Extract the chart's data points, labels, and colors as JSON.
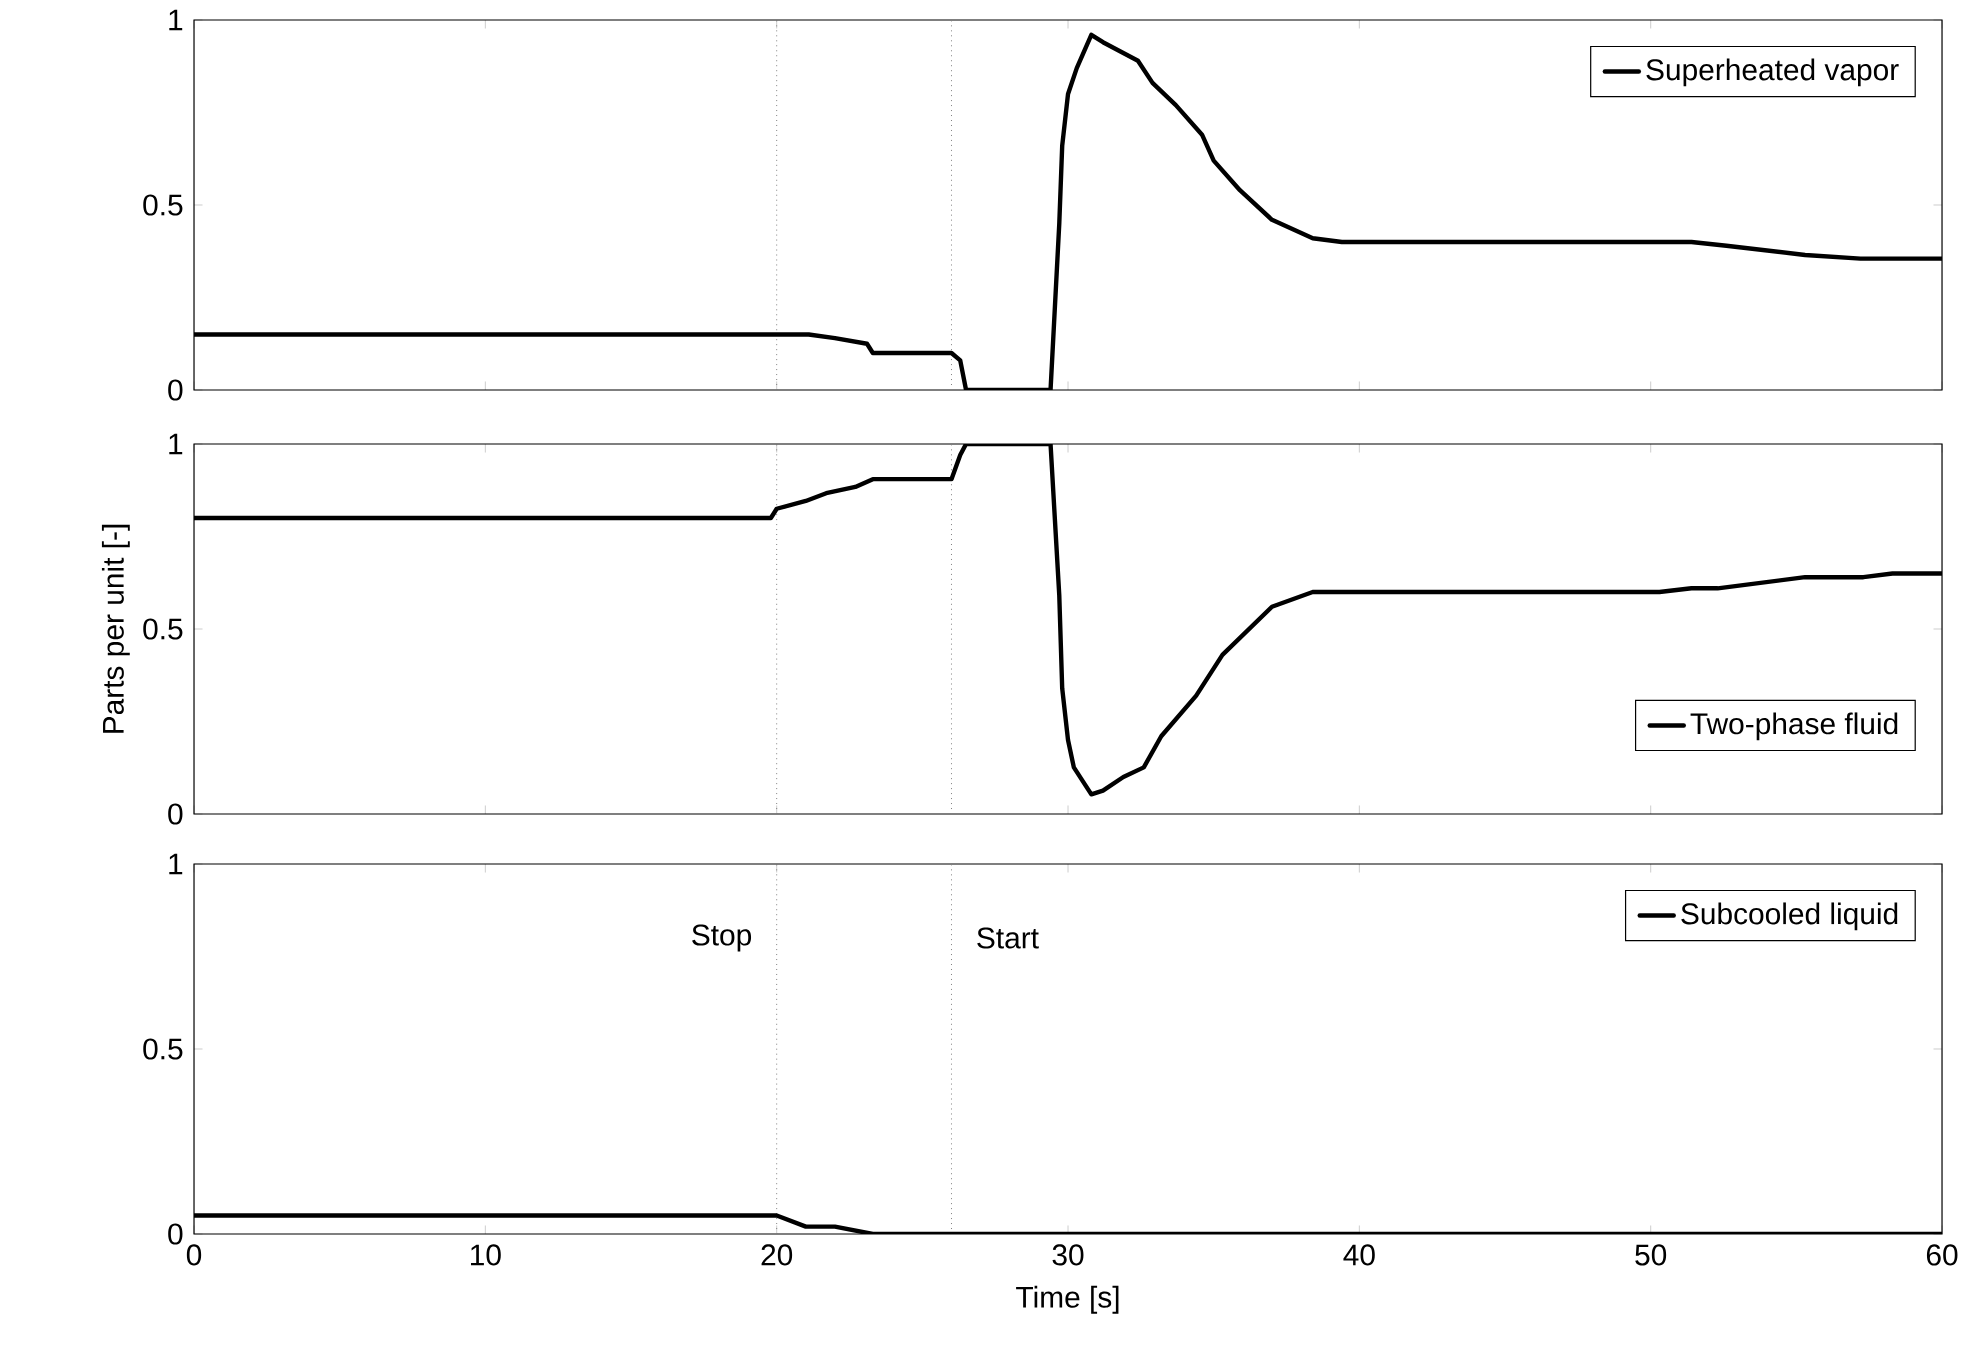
{
  "chart_data": [
    {
      "type": "line",
      "xlim": [
        0,
        60
      ],
      "xticks": [
        0,
        10,
        20,
        30,
        40,
        50,
        60
      ],
      "ylim": [
        0,
        1
      ],
      "yticks": [
        0,
        0.5,
        1
      ],
      "tick_labels": "y",
      "legend": "top right",
      "ref_lines": [
        {
          "axis": "x",
          "value": 20,
          "color": "#808080",
          "line_style": "dotted"
        },
        {
          "axis": "x",
          "value": 26,
          "color": "#808080",
          "line_style": "dotted"
        }
      ],
      "series": [
        {
          "name": "Superheated vapor",
          "color": "#000000",
          "x": [
            0,
            20.0,
            20.2,
            21.1,
            22.0,
            23.1,
            23.3,
            26.0,
            26.3,
            26.5,
            29.4,
            29.7,
            29.8,
            30.0,
            30.3,
            30.8,
            31.2,
            32.4,
            32.9,
            33.7,
            34.6,
            35.0,
            35.9,
            37.0,
            38.4,
            39.4,
            51.4,
            52.6,
            55.3,
            57.2,
            60
          ],
          "values": [
            0.15,
            0.15,
            0.15,
            0.15,
            0.14,
            0.125,
            0.1,
            0.1,
            0.08,
            0,
            0,
            0.45,
            0.66,
            0.8,
            0.87,
            0.96,
            0.94,
            0.89,
            0.83,
            0.77,
            0.69,
            0.62,
            0.54,
            0.46,
            0.41,
            0.4,
            0.4,
            0.39,
            0.365,
            0.355,
            0.355
          ]
        }
      ]
    },
    {
      "type": "line",
      "xlim": [
        0,
        60
      ],
      "xticks": [
        0,
        10,
        20,
        30,
        40,
        50,
        60
      ],
      "ylim": [
        0,
        1
      ],
      "yticks": [
        0,
        0.5,
        1
      ],
      "tick_labels": "y",
      "legend": "bottom right",
      "ylabel": "Parts per unit [-]",
      "ref_lines": [
        {
          "axis": "x",
          "value": 20,
          "color": "#808080",
          "line_style": "dotted"
        },
        {
          "axis": "x",
          "value": 26,
          "color": "#808080",
          "line_style": "dotted"
        }
      ],
      "series": [
        {
          "name": "Two-phase fluid",
          "color": "#000000",
          "x": [
            0,
            19.8,
            20.0,
            21.0,
            21.7,
            22.7,
            23.3,
            26.0,
            26.3,
            26.5,
            29.4,
            29.7,
            29.8,
            30.0,
            30.2,
            30.8,
            31.2,
            31.9,
            32.6,
            33.2,
            34.4,
            35.3,
            37.0,
            38.4,
            50.3,
            51.4,
            52.3,
            55.3,
            57.3,
            58.3,
            60
          ],
          "values": [
            0.8,
            0.8,
            0.825,
            0.846,
            0.867,
            0.884,
            0.905,
            0.905,
            0.97,
            1,
            1,
            0.59,
            0.34,
            0.2,
            0.126,
            0.053,
            0.063,
            0.1,
            0.126,
            0.21,
            0.32,
            0.43,
            0.56,
            0.6,
            0.6,
            0.61,
            0.61,
            0.64,
            0.64,
            0.65,
            0.65
          ]
        }
      ]
    },
    {
      "type": "line",
      "xlim": [
        0,
        60
      ],
      "xticks": [
        0,
        10,
        20,
        30,
        40,
        50,
        60
      ],
      "ylim": [
        0,
        1
      ],
      "yticks": [
        0,
        0.5,
        1
      ],
      "legend": "top right",
      "xlabel": "Time [s]",
      "ref_lines": [
        {
          "axis": "x",
          "value": 20,
          "label": "Stop",
          "color": "#808080",
          "line_style": "dotted"
        },
        {
          "axis": "x",
          "value": 26,
          "label": "Start",
          "color": "#808080",
          "line_style": "dotted"
        }
      ],
      "series": [
        {
          "name": "Subcooled liquid",
          "color": "#000000",
          "x": [
            0,
            19.4,
            20.0,
            21.0,
            22.0,
            23.3,
            60
          ],
          "values": [
            0.05,
            0.05,
            0.05,
            0.02,
            0.02,
            0,
            0
          ]
        }
      ]
    }
  ]
}
